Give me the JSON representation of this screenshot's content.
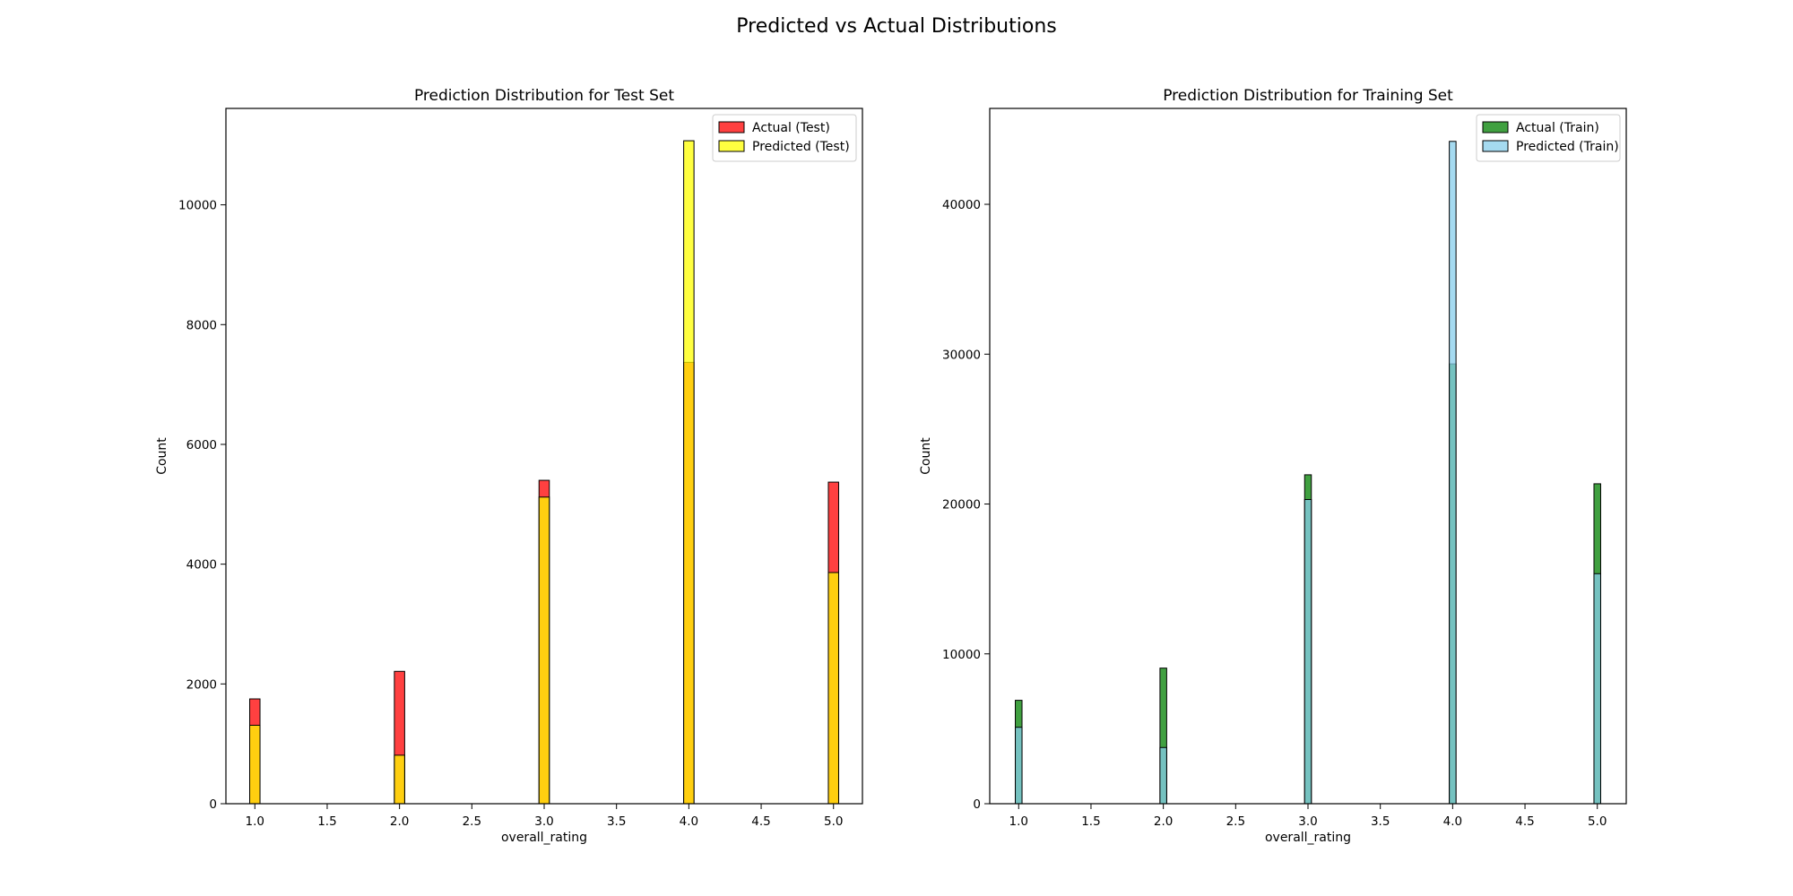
{
  "figure_title": "Predicted vs Actual Distributions",
  "chart_data": [
    {
      "type": "bar",
      "title": "Prediction Distribution for Test Set",
      "xlabel": "overall_rating",
      "ylabel": "Count",
      "xlim": [
        0.8,
        5.2
      ],
      "ylim": [
        0,
        11610
      ],
      "xticks": [
        1.0,
        1.5,
        2.0,
        2.5,
        3.0,
        3.5,
        4.0,
        4.5,
        5.0
      ],
      "xtick_labels": [
        "1.0",
        "1.5",
        "2.0",
        "2.5",
        "3.0",
        "3.5",
        "4.0",
        "4.5",
        "5.0"
      ],
      "yticks": [
        0,
        2000,
        4000,
        6000,
        8000,
        10000
      ],
      "ytick_labels": [
        "0",
        "2000",
        "4000",
        "6000",
        "8000",
        "10000"
      ],
      "grid": false,
      "legend": "top-right",
      "categories": [
        1.0,
        2.0,
        3.0,
        4.0,
        5.0
      ],
      "series": [
        {
          "name": "Actual (Test)",
          "color": "#ff0000",
          "values": [
            1750,
            2210,
            5400,
            7370,
            5370
          ]
        },
        {
          "name": "Predicted (Test)",
          "color": "#ffff00",
          "values": [
            1310,
            810,
            5120,
            11070,
            3860
          ]
        }
      ]
    },
    {
      "type": "bar",
      "title": "Prediction Distribution for Training Set",
      "xlabel": "overall_rating",
      "ylabel": "Count",
      "xlim": [
        0.8,
        5.2
      ],
      "ylim": [
        0,
        46400
      ],
      "xticks": [
        1.0,
        1.5,
        2.0,
        2.5,
        3.0,
        3.5,
        4.0,
        4.5,
        5.0
      ],
      "xtick_labels": [
        "1.0",
        "1.5",
        "2.0",
        "2.5",
        "3.0",
        "3.5",
        "4.0",
        "4.5",
        "5.0"
      ],
      "yticks": [
        0,
        10000,
        20000,
        30000,
        40000
      ],
      "ytick_labels": [
        "0",
        "10000",
        "20000",
        "30000",
        "40000"
      ],
      "grid": false,
      "legend": "top-right",
      "categories": [
        1.0,
        2.0,
        3.0,
        4.0,
        5.0
      ],
      "series": [
        {
          "name": "Actual (Train)",
          "color": "#008000",
          "values": [
            6900,
            9050,
            21950,
            29350,
            21350
          ]
        },
        {
          "name": "Predicted (Train)",
          "color": "#87ceeb",
          "values": [
            5100,
            3750,
            20300,
            44200,
            15350
          ]
        }
      ]
    }
  ]
}
